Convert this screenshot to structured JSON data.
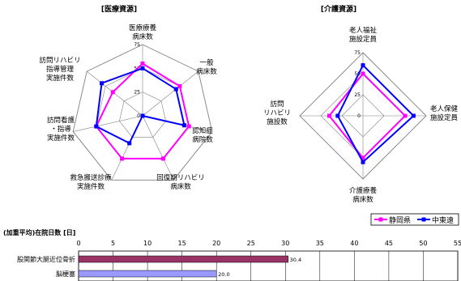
{
  "colors": {
    "series1": "#ff00ff",
    "series2": "#0000ff",
    "bar1": "#993366",
    "bar2": "#9999ff",
    "grid": "#808080"
  },
  "legend": {
    "series1": "静岡県",
    "series2": "中東遠"
  },
  "chart_data": [
    {
      "type": "radar",
      "title": "[医療資源]",
      "axes": [
        "医療療養\n病床数",
        "一般\n病床数",
        "認知症\n病院数",
        "回復期リハビリ\n病床数",
        "救急搬送診療\n実施件数",
        "訪問看護\n・指導\n実施件数",
        "訪問リハビリ\n指導管理\n実施件数"
      ],
      "rticks": [
        "0",
        "25",
        "50",
        "75"
      ],
      "rmax": 75,
      "series": [
        {
          "name": "静岡県",
          "values": [
            55,
            50,
            50,
            50,
            50,
            50,
            40
          ]
        },
        {
          "name": "中東遠",
          "values": [
            50,
            45,
            45,
            0,
            32,
            50,
            55
          ]
        }
      ]
    },
    {
      "type": "radar",
      "title": "[介護資源]",
      "axes": [
        "老人福祉\n施設定員",
        "老人保健\n施設定員",
        "介護療養\n病床数",
        "訪問\nリハビリ\n施設数"
      ],
      "rticks": [
        "0",
        "25",
        "50",
        "75"
      ],
      "rmax": 75,
      "series": [
        {
          "name": "静岡県",
          "values": [
            50,
            50,
            50,
            40
          ]
        },
        {
          "name": "中東遠",
          "values": [
            60,
            60,
            55,
            30
          ]
        }
      ]
    },
    {
      "type": "bar",
      "orientation": "horizontal",
      "title": "(加重平均)在院日数 [日]",
      "categories": [
        "股関節大腿近位骨折",
        "脳梗塞"
      ],
      "values": [
        30.4,
        20.0
      ],
      "value_labels": [
        "30.4",
        "20.0"
      ],
      "xticks": [
        "0",
        "5",
        "10",
        "15",
        "20",
        "25",
        "30",
        "35",
        "40",
        "45",
        "50",
        "55"
      ],
      "xlim": [
        0,
        55
      ]
    }
  ]
}
